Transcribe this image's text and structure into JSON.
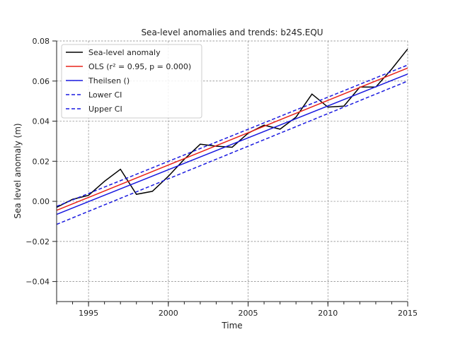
{
  "chart_data": {
    "type": "line",
    "title": "Sea-level anomalies and trends: b24S.EQU",
    "xlabel": "Time",
    "ylabel": "Sea level anomaly (m)",
    "xlim": [
      1993,
      2015
    ],
    "ylim": [
      -0.05,
      0.08
    ],
    "x_ticks": [
      1995,
      2000,
      2005,
      2010,
      2015
    ],
    "x_minor_ticks": [
      1993,
      1994,
      1995,
      1996,
      1997,
      1998,
      1999,
      2000,
      2001,
      2002,
      2003,
      2004,
      2005,
      2006,
      2007,
      2008,
      2009,
      2010,
      2011,
      2012,
      2013,
      2014,
      2015
    ],
    "y_ticks": [
      -0.04,
      -0.02,
      0.0,
      0.02,
      0.04,
      0.06,
      0.08
    ],
    "y_tick_labels": [
      "−0.04",
      "−0.02",
      "0.00",
      "0.02",
      "0.04",
      "0.06",
      "0.08"
    ],
    "grid": true,
    "legend_position": "upper-left",
    "series": [
      {
        "name": "Sea-level anomaly",
        "color": "#000000",
        "dash": "solid",
        "points": [
          [
            1993,
            -0.003
          ],
          [
            1994,
            0.001
          ],
          [
            1995,
            0.003
          ],
          [
            1996,
            0.01
          ],
          [
            1997,
            0.016
          ],
          [
            1998,
            0.0035
          ],
          [
            1999,
            0.005
          ],
          [
            2000,
            0.0125
          ],
          [
            2001,
            0.021
          ],
          [
            2002,
            0.0285
          ],
          [
            2003,
            0.0275
          ],
          [
            2004,
            0.027
          ],
          [
            2005,
            0.034
          ],
          [
            2006,
            0.038
          ],
          [
            2007,
            0.036
          ],
          [
            2008,
            0.042
          ],
          [
            2009,
            0.0535
          ],
          [
            2010,
            0.047
          ],
          [
            2011,
            0.0475
          ],
          [
            2012,
            0.057
          ],
          [
            2013,
            0.057
          ],
          [
            2014,
            0.066
          ],
          [
            2015,
            0.076
          ]
        ]
      },
      {
        "name": "OLS",
        "legend_label": "OLS (r² = 0.95, p = 0.000)",
        "color": "#e8231a",
        "dash": "solid",
        "points": [
          [
            1993,
            -0.0045
          ],
          [
            2015,
            0.0665
          ]
        ]
      },
      {
        "name": "Theilsen ()",
        "color": "#1a1ae0",
        "dash": "solid",
        "points": [
          [
            1993,
            -0.0065
          ],
          [
            2015,
            0.0635
          ]
        ]
      },
      {
        "name": "Lower CI",
        "color": "#1a1ae0",
        "dash": "dashed",
        "points": [
          [
            1993,
            -0.0115
          ],
          [
            2015,
            0.06
          ]
        ]
      },
      {
        "name": "Upper CI",
        "color": "#1a1ae0",
        "dash": "dashed",
        "points": [
          [
            1993,
            -0.0025
          ],
          [
            2015,
            0.068
          ]
        ]
      }
    ]
  }
}
